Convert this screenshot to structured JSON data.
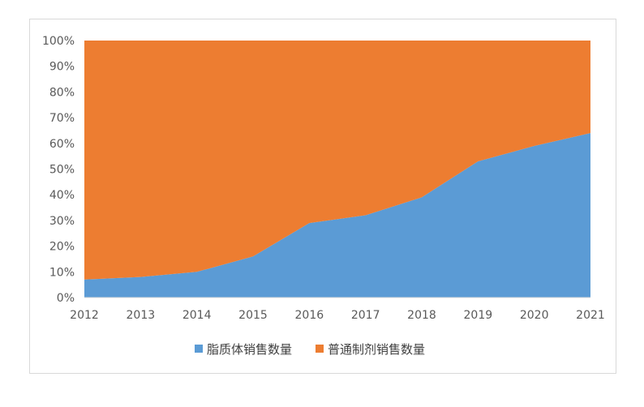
{
  "chart_data": {
    "type": "area",
    "stacking": "percent",
    "x": [
      "2012",
      "2013",
      "2014",
      "2015",
      "2016",
      "2017",
      "2018",
      "2019",
      "2020",
      "2021"
    ],
    "series": [
      {
        "name": "脂质体销售数量",
        "color": "#5b9bd5",
        "values": [
          7,
          8,
          10,
          16,
          29,
          32,
          39,
          53,
          59,
          64
        ]
      },
      {
        "name": "普通制剂销售数量",
        "color": "#ed7d31",
        "values": [
          93,
          92,
          90,
          84,
          71,
          68,
          61,
          47,
          41,
          36
        ]
      }
    ],
    "y_ticks": [
      "0%",
      "10%",
      "20%",
      "30%",
      "40%",
      "50%",
      "60%",
      "70%",
      "80%",
      "90%",
      "100%"
    ],
    "ylim": [
      0,
      100
    ],
    "grid": false,
    "legend_position": "bottom"
  }
}
